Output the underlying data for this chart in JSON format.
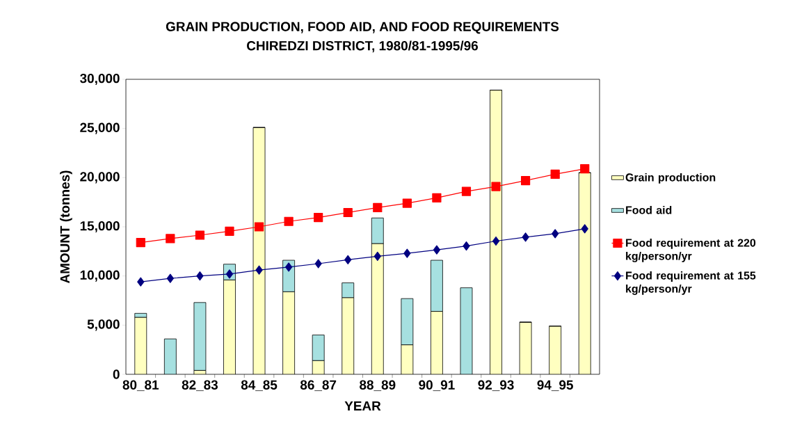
{
  "chart_data": {
    "type": "bar",
    "title": "GRAIN PRODUCTION, FOOD AID, AND FOOD REQUIREMENTS",
    "subtitle": "CHIREDZI DISTRICT, 1980/81-1995/96",
    "xlabel": "YEAR",
    "ylabel": "AMOUNT (tonnes)",
    "categories": [
      "80_81",
      null,
      "82_83",
      null,
      "84_85",
      null,
      "86_87",
      null,
      "88_89",
      null,
      "90_91",
      null,
      "92_93",
      null,
      "94_95",
      null
    ],
    "stacked": true,
    "legend": "right",
    "ylim": [
      0,
      30000
    ],
    "yticks": [
      {
        "value": 0,
        "label": "0"
      },
      {
        "value": 5000,
        "label": "5,000"
      },
      {
        "value": 10000,
        "label": "10,000"
      },
      {
        "value": 15000,
        "label": "15,000"
      },
      {
        "value": 20000,
        "label": "20,000"
      },
      {
        "value": 25000,
        "label": "25,000"
      },
      {
        "value": 30000,
        "label": "30,000"
      }
    ],
    "series": [
      {
        "name": "Grain production",
        "color": "#ffffc0",
        "values": [
          5800,
          0,
          400,
          9600,
          25100,
          8400,
          1400,
          7800,
          13300,
          3000,
          6400,
          0,
          28900,
          5300,
          4900,
          20500
        ]
      },
      {
        "name": "Food aid",
        "color": "#a6e0e0",
        "values": [
          400,
          3600,
          6900,
          1600,
          0,
          3200,
          2600,
          1500,
          2600,
          4700,
          5200,
          8800,
          0,
          0,
          0,
          0
        ]
      },
      {
        "name": "Food requirement at 220 kg/person/yr",
        "type": "line",
        "color": "#ff0000",
        "marker": "square",
        "values": [
          13400,
          13800,
          14150,
          14550,
          15000,
          15550,
          15950,
          16450,
          16950,
          17400,
          17950,
          18600,
          19100,
          19700,
          20350,
          20900
        ]
      },
      {
        "name": "Food requirement at 155 kg/person/yr",
        "type": "line",
        "color": "#000080",
        "marker": "diamond",
        "values": [
          9400,
          9750,
          10000,
          10200,
          10600,
          10900,
          11250,
          11650,
          12000,
          12300,
          12650,
          13050,
          13550,
          13950,
          14300,
          14800
        ]
      }
    ]
  }
}
